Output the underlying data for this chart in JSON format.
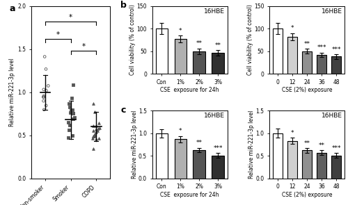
{
  "panel_a": {
    "groups": [
      "Non-smoker",
      "Smoker",
      "COPD"
    ],
    "means": [
      1.0,
      0.68,
      0.6
    ],
    "sds": [
      0.2,
      0.22,
      0.17
    ],
    "n_pts": [
      11,
      16,
      21
    ],
    "ylabel": "Relative miR-221-3p level",
    "ylim": [
      0.0,
      2.0
    ],
    "yticks": [
      0.0,
      0.5,
      1.0,
      1.5,
      2.0
    ],
    "sig_configs": [
      [
        0,
        2,
        1.82,
        "*"
      ],
      [
        0,
        1,
        1.62,
        "*"
      ],
      [
        1,
        2,
        1.48,
        "*"
      ]
    ]
  },
  "panel_b_left": {
    "categories": [
      "Con",
      "1%",
      "2%",
      "3%"
    ],
    "values": [
      100,
      77,
      50,
      46
    ],
    "errors": [
      12,
      8,
      6,
      6
    ],
    "colors": [
      "#ffffff",
      "#b0b0b0",
      "#555555",
      "#303030"
    ],
    "ylabel": "Cell viability (% of control)",
    "xlabel": "CSE  exposure for 24h",
    "title": "16HBE",
    "ylim": [
      0,
      150
    ],
    "yticks": [
      0,
      50,
      100,
      150
    ],
    "sig": [
      "",
      "*",
      "**",
      "**"
    ]
  },
  "panel_b_right": {
    "categories": [
      "0",
      "12",
      "24",
      "36",
      "48"
    ],
    "values": [
      100,
      82,
      50,
      42,
      38
    ],
    "errors": [
      12,
      8,
      5,
      5,
      5
    ],
    "colors": [
      "#ffffff",
      "#d0d0d0",
      "#909090",
      "#606060",
      "#404040"
    ],
    "ylabel": "Cell viability (% of control)",
    "xlabel": "CSE (2%) exposure",
    "title": "16HBE",
    "ylim": [
      0,
      150
    ],
    "yticks": [
      0,
      50,
      100,
      150
    ],
    "sig": [
      "",
      "*",
      "**",
      "***",
      "***"
    ]
  },
  "panel_c_left": {
    "categories": [
      "Con",
      "1%",
      "2%",
      "3%"
    ],
    "values": [
      1.0,
      0.87,
      0.63,
      0.51
    ],
    "errors": [
      0.09,
      0.07,
      0.05,
      0.05
    ],
    "colors": [
      "#ffffff",
      "#b0b0b0",
      "#555555",
      "#303030"
    ],
    "ylabel": "Relative miR-221-3p level",
    "xlabel": "CSE  exposure for 24h",
    "title": "16HBE",
    "ylim": [
      0.0,
      1.5
    ],
    "yticks": [
      0.0,
      0.5,
      1.0,
      1.5
    ],
    "sig": [
      "",
      "*",
      "**",
      "***"
    ]
  },
  "panel_c_right": {
    "categories": [
      "0",
      "12",
      "24",
      "36",
      "48"
    ],
    "values": [
      1.0,
      0.83,
      0.62,
      0.57,
      0.51
    ],
    "errors": [
      0.1,
      0.07,
      0.05,
      0.05,
      0.05
    ],
    "colors": [
      "#ffffff",
      "#d0d0d0",
      "#909090",
      "#606060",
      "#404040"
    ],
    "ylabel": "Relative miR-221-3p level",
    "xlabel": "CSE (2%) exposure",
    "title": "16HBE",
    "ylim": [
      0.0,
      1.5
    ],
    "yticks": [
      0.0,
      0.5,
      1.0,
      1.5
    ],
    "sig": [
      "",
      "*",
      "**",
      "**",
      "***"
    ]
  },
  "edgecolor": "#000000",
  "bar_linewidth": 0.8,
  "fontsize_label": 5.5,
  "fontsize_tick": 5.5,
  "fontsize_title": 6.5,
  "fontsize_sig": 6.5,
  "fontsize_panel_label": 9
}
